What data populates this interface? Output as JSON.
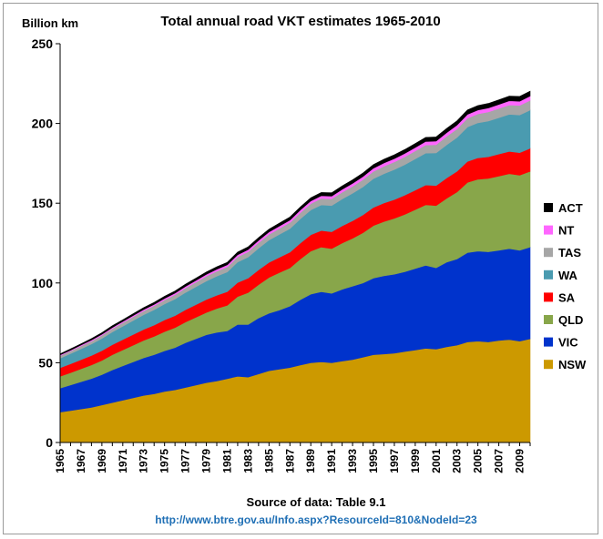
{
  "chart_data": {
    "type": "area",
    "stacked": true,
    "title": "Total annual road VKT estimates 1965-2010",
    "ylabel": "Billion km",
    "xlabel": "",
    "ylim": [
      0,
      250
    ],
    "yticks": [
      0,
      50,
      100,
      150,
      200,
      250
    ],
    "x": [
      1965,
      1966,
      1967,
      1968,
      1969,
      1970,
      1971,
      1972,
      1973,
      1974,
      1975,
      1976,
      1977,
      1978,
      1979,
      1980,
      1981,
      1982,
      1983,
      1984,
      1985,
      1986,
      1987,
      1988,
      1989,
      1990,
      1991,
      1992,
      1993,
      1994,
      1995,
      1996,
      1997,
      1998,
      1999,
      2000,
      2001,
      2002,
      2003,
      2004,
      2005,
      2006,
      2007,
      2008,
      2009,
      2010
    ],
    "xtick_labels": [
      "1965",
      "1967",
      "1969",
      "1971",
      "1973",
      "1975",
      "1977",
      "1979",
      "1981",
      "1983",
      "1985",
      "1987",
      "1989",
      "1991",
      "1993",
      "1995",
      "1997",
      "1999",
      "2001",
      "2003",
      "2005",
      "2007",
      "2009"
    ],
    "grid": false,
    "legend_position": "right",
    "series": [
      {
        "name": "NSW",
        "color": "#cc9900",
        "values": [
          19,
          20,
          21,
          22,
          23.5,
          25,
          26.5,
          28,
          29.5,
          30.5,
          32,
          33,
          34.5,
          36,
          37.5,
          38.5,
          40,
          41.5,
          41,
          43,
          45,
          46,
          47,
          48.5,
          50,
          50.5,
          50,
          51,
          52,
          53.5,
          55,
          55.5,
          56,
          57,
          58,
          59,
          58.5,
          60,
          61,
          63,
          63.5,
          63,
          64,
          64.5,
          63.5,
          65
        ]
      },
      {
        "name": "VIC",
        "color": "#0033cc",
        "values": [
          15,
          16,
          17,
          18,
          19,
          20.5,
          21.5,
          22.5,
          23.5,
          24.5,
          25.5,
          26.5,
          28,
          29,
          30,
          30.5,
          30,
          32.5,
          33,
          35,
          36,
          37,
          38.5,
          41,
          43,
          44,
          43.5,
          45,
          46,
          46.5,
          48,
          49,
          49.5,
          50,
          51,
          52,
          51,
          53,
          54,
          56,
          56.5,
          56.5,
          56.5,
          57,
          57,
          57.5
        ]
      },
      {
        "name": "QLD",
        "color": "#88a64a",
        "values": [
          7.5,
          7.8,
          8.2,
          8.6,
          9,
          9.5,
          10,
          10.5,
          11,
          11.5,
          12,
          12.5,
          13,
          13.5,
          14,
          15,
          16,
          17.5,
          20,
          21,
          22.5,
          23.5,
          24,
          25.5,
          27,
          28,
          28,
          29,
          30,
          31.5,
          33,
          34,
          35,
          36,
          37,
          38,
          39,
          40,
          42,
          44,
          45,
          46,
          46.5,
          47,
          47,
          47.5
        ]
      },
      {
        "name": "SA",
        "color": "#ff0000",
        "values": [
          5.3,
          5.5,
          5.7,
          5.9,
          6.1,
          6.3,
          6.5,
          6.7,
          6.9,
          7.1,
          7.3,
          7.5,
          7.7,
          7.9,
          8.1,
          8.3,
          8.5,
          8.8,
          9,
          9.2,
          9.4,
          9.6,
          9.8,
          10,
          10.2,
          10.4,
          10.6,
          10.8,
          11,
          11.2,
          11.4,
          11.6,
          11.8,
          12,
          12.2,
          12.4,
          12.6,
          12.8,
          13,
          13.2,
          13.4,
          13.6,
          13.8,
          14,
          14.2,
          14.4
        ]
      },
      {
        "name": "WA",
        "color": "#4a9bb0",
        "values": [
          6,
          6.4,
          6.8,
          7.2,
          7.6,
          8,
          8.4,
          8.8,
          9.2,
          9.6,
          10,
          10.4,
          10.8,
          11.2,
          11.6,
          12,
          12.4,
          12.8,
          13.2,
          13.6,
          14,
          14.4,
          14.8,
          15.2,
          15.6,
          16,
          16.4,
          16.8,
          17.2,
          17.6,
          18,
          18.4,
          18.8,
          19.2,
          19.6,
          20,
          20.4,
          20.8,
          21.2,
          21.6,
          22,
          22.4,
          22.8,
          23.2,
          23.6,
          24
        ]
      },
      {
        "name": "TAS",
        "color": "#a6a6a6",
        "values": [
          1.6,
          1.7,
          1.8,
          1.9,
          2,
          2.1,
          2.2,
          2.3,
          2.4,
          2.5,
          2.6,
          2.7,
          2.8,
          2.9,
          3,
          3.1,
          3.2,
          3.3,
          3.4,
          3.5,
          3.6,
          3.7,
          3.8,
          3.9,
          4,
          4.1,
          4.2,
          4.3,
          4.4,
          4.5,
          4.6,
          4.7,
          4.8,
          4.9,
          5,
          5.1,
          5.2,
          5.3,
          5.4,
          5.5,
          5.6,
          5.7,
          5.8,
          5.9,
          6,
          6.1
        ]
      },
      {
        "name": "NT",
        "color": "#ff66ff",
        "values": [
          0.5,
          0.5,
          0.55,
          0.6,
          0.65,
          0.7,
          0.75,
          0.8,
          0.85,
          0.9,
          0.95,
          1,
          1.05,
          1.1,
          1.15,
          1.2,
          1.25,
          1.3,
          1.35,
          1.4,
          1.45,
          1.5,
          1.55,
          1.6,
          1.65,
          1.7,
          1.75,
          1.8,
          1.85,
          1.9,
          1.95,
          2,
          2.05,
          2.1,
          2.15,
          2.2,
          2.25,
          2.3,
          2.35,
          2.4,
          2.45,
          2.5,
          2.55,
          2.6,
          2.65,
          2.7
        ]
      },
      {
        "name": "ACT",
        "color": "#000000",
        "values": [
          0.7,
          0.75,
          0.8,
          0.9,
          1,
          1.05,
          1.1,
          1.15,
          1.2,
          1.25,
          1.3,
          1.35,
          1.4,
          1.45,
          1.5,
          1.55,
          1.6,
          1.65,
          1.7,
          1.75,
          1.8,
          1.85,
          1.9,
          1.95,
          2,
          2.05,
          2.1,
          2.15,
          2.2,
          2.25,
          2.3,
          2.35,
          2.4,
          2.45,
          2.5,
          2.55,
          2.6,
          2.65,
          2.7,
          2.75,
          2.8,
          2.85,
          2.9,
          2.95,
          3,
          3.05
        ]
      }
    ],
    "source_label": "Source of data:  Table 9.1",
    "source_url": "http://www.btre.gov.au/Info.aspx?ResourceId=810&NodeId=23"
  }
}
